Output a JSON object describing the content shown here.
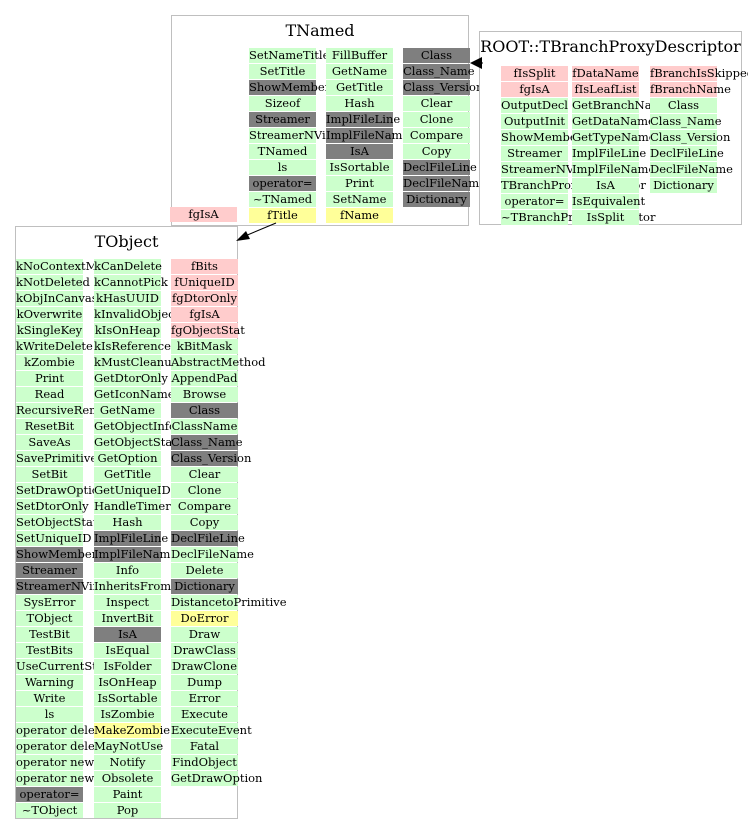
{
  "colors": {
    "green": "#ccffcc",
    "red": "#ffcccc",
    "gray": "#7f7f7f",
    "yellow": "#ffff99",
    "border": "#bfbfbf"
  },
  "boxes": [
    {
      "id": "tnamed",
      "title": "TNamed",
      "columns": [
        [
          {
            "t": "SetNameTitle",
            "c": "green"
          },
          {
            "t": "SetTitle",
            "c": "green"
          },
          {
            "t": "ShowMembers",
            "c": "gray"
          },
          {
            "t": "Sizeof",
            "c": "green"
          },
          {
            "t": "Streamer",
            "c": "gray"
          },
          {
            "t": "StreamerNVirtual",
            "c": "green"
          },
          {
            "t": "TNamed",
            "c": "green"
          },
          {
            "t": "ls",
            "c": "green"
          },
          {
            "t": "operator=",
            "c": "gray"
          },
          {
            "t": "~TNamed",
            "c": "green"
          },
          {
            "t": "fTitle",
            "c": "yellow"
          }
        ],
        [
          {
            "t": "FillBuffer",
            "c": "green"
          },
          {
            "t": "GetName",
            "c": "green"
          },
          {
            "t": "GetTitle",
            "c": "green"
          },
          {
            "t": "Hash",
            "c": "green"
          },
          {
            "t": "ImplFileLine",
            "c": "gray"
          },
          {
            "t": "ImplFileName",
            "c": "gray"
          },
          {
            "t": "IsA",
            "c": "gray"
          },
          {
            "t": "IsSortable",
            "c": "green"
          },
          {
            "t": "Print",
            "c": "green"
          },
          {
            "t": "SetName",
            "c": "green"
          },
          {
            "t": "fName",
            "c": "yellow"
          }
        ],
        [
          {
            "t": "Class",
            "c": "gray"
          },
          {
            "t": "Class_Name",
            "c": "gray"
          },
          {
            "t": "Class_Version",
            "c": "gray"
          },
          {
            "t": "Clear",
            "c": "green"
          },
          {
            "t": "Clone",
            "c": "green"
          },
          {
            "t": "Compare",
            "c": "green"
          },
          {
            "t": "Copy",
            "c": "green"
          },
          {
            "t": "DeclFileLine",
            "c": "gray"
          },
          {
            "t": "DeclFileName",
            "c": "gray"
          },
          {
            "t": "Dictionary",
            "c": "gray"
          }
        ]
      ]
    },
    {
      "id": "tbranchproxydescriptor",
      "title": "ROOT::TBranchProxyDescriptor",
      "columns": [
        [
          {
            "t": "fIsSplit",
            "c": "red"
          },
          {
            "t": "fgIsA",
            "c": "red"
          },
          {
            "t": "OutputDecl",
            "c": "green"
          },
          {
            "t": "OutputInit",
            "c": "green"
          },
          {
            "t": "ShowMembers",
            "c": "green"
          },
          {
            "t": "Streamer",
            "c": "green"
          },
          {
            "t": "StreamerNVirtual",
            "c": "green"
          },
          {
            "t": "TBranchProxyDescriptor",
            "c": "green"
          },
          {
            "t": "operator=",
            "c": "green"
          },
          {
            "t": "~TBranchProxyDescriptor",
            "c": "green"
          }
        ],
        [
          {
            "t": "fDataName",
            "c": "red"
          },
          {
            "t": "fIsLeafList",
            "c": "red"
          },
          {
            "t": "GetBranchName",
            "c": "green"
          },
          {
            "t": "GetDataName",
            "c": "green"
          },
          {
            "t": "GetTypeName",
            "c": "green"
          },
          {
            "t": "ImplFileLine",
            "c": "green"
          },
          {
            "t": "ImplFileName",
            "c": "green"
          },
          {
            "t": "IsA",
            "c": "green"
          },
          {
            "t": "IsEquivalent",
            "c": "green"
          },
          {
            "t": "IsSplit",
            "c": "green"
          }
        ],
        [
          {
            "t": "fBranchIsSkipped",
            "c": "red"
          },
          {
            "t": "fBranchName",
            "c": "red"
          },
          {
            "t": "Class",
            "c": "green"
          },
          {
            "t": "Class_Name",
            "c": "green"
          },
          {
            "t": "Class_Version",
            "c": "green"
          },
          {
            "t": "DeclFileLine",
            "c": "green"
          },
          {
            "t": "DeclFileName",
            "c": "green"
          },
          {
            "t": "Dictionary",
            "c": "green"
          }
        ]
      ]
    },
    {
      "id": "tobject",
      "title": "TObject",
      "columns": [
        [
          {
            "t": "kNoContextMenu",
            "c": "green"
          },
          {
            "t": "kNotDeleted",
            "c": "green"
          },
          {
            "t": "kObjInCanvas",
            "c": "green"
          },
          {
            "t": "kOverwrite",
            "c": "green"
          },
          {
            "t": "kSingleKey",
            "c": "green"
          },
          {
            "t": "kWriteDelete",
            "c": "green"
          },
          {
            "t": "kZombie",
            "c": "green"
          },
          {
            "t": "Print",
            "c": "green"
          },
          {
            "t": "Read",
            "c": "green"
          },
          {
            "t": "RecursiveRemove",
            "c": "green"
          },
          {
            "t": "ResetBit",
            "c": "green"
          },
          {
            "t": "SaveAs",
            "c": "green"
          },
          {
            "t": "SavePrimitive",
            "c": "green"
          },
          {
            "t": "SetBit",
            "c": "green"
          },
          {
            "t": "SetDrawOption",
            "c": "green"
          },
          {
            "t": "SetDtorOnly",
            "c": "green"
          },
          {
            "t": "SetObjectStat",
            "c": "green"
          },
          {
            "t": "SetUniqueID",
            "c": "green"
          },
          {
            "t": "ShowMembers",
            "c": "gray"
          },
          {
            "t": "Streamer",
            "c": "gray"
          },
          {
            "t": "StreamerNVirtual",
            "c": "gray"
          },
          {
            "t": "SysError",
            "c": "green"
          },
          {
            "t": "TObject",
            "c": "green"
          },
          {
            "t": "TestBit",
            "c": "green"
          },
          {
            "t": "TestBits",
            "c": "green"
          },
          {
            "t": "UseCurrentStyle",
            "c": "green"
          },
          {
            "t": "Warning",
            "c": "green"
          },
          {
            "t": "Write",
            "c": "green"
          },
          {
            "t": "ls",
            "c": "green"
          },
          {
            "t": "operator delete",
            "c": "green"
          },
          {
            "t": "operator delete[]",
            "c": "green"
          },
          {
            "t": "operator new",
            "c": "green"
          },
          {
            "t": "operator new[]",
            "c": "green"
          },
          {
            "t": "operator=",
            "c": "gray"
          },
          {
            "t": "~TObject",
            "c": "green"
          }
        ],
        [
          {
            "t": "kCanDelete",
            "c": "green"
          },
          {
            "t": "kCannotPick",
            "c": "green"
          },
          {
            "t": "kHasUUID",
            "c": "green"
          },
          {
            "t": "kInvalidObject",
            "c": "green"
          },
          {
            "t": "kIsOnHeap",
            "c": "green"
          },
          {
            "t": "kIsReferenced",
            "c": "green"
          },
          {
            "t": "kMustCleanup",
            "c": "green"
          },
          {
            "t": "GetDtorOnly",
            "c": "green"
          },
          {
            "t": "GetIconName",
            "c": "green"
          },
          {
            "t": "GetName",
            "c": "green"
          },
          {
            "t": "GetObjectInfo",
            "c": "green"
          },
          {
            "t": "GetObjectStat",
            "c": "green"
          },
          {
            "t": "GetOption",
            "c": "green"
          },
          {
            "t": "GetTitle",
            "c": "green"
          },
          {
            "t": "GetUniqueID",
            "c": "green"
          },
          {
            "t": "HandleTimer",
            "c": "green"
          },
          {
            "t": "Hash",
            "c": "green"
          },
          {
            "t": "ImplFileLine",
            "c": "gray"
          },
          {
            "t": "ImplFileName",
            "c": "gray"
          },
          {
            "t": "Info",
            "c": "green"
          },
          {
            "t": "InheritsFrom",
            "c": "green"
          },
          {
            "t": "Inspect",
            "c": "green"
          },
          {
            "t": "InvertBit",
            "c": "green"
          },
          {
            "t": "IsA",
            "c": "gray"
          },
          {
            "t": "IsEqual",
            "c": "green"
          },
          {
            "t": "IsFolder",
            "c": "green"
          },
          {
            "t": "IsOnHeap",
            "c": "green"
          },
          {
            "t": "IsSortable",
            "c": "green"
          },
          {
            "t": "IsZombie",
            "c": "green"
          },
          {
            "t": "MakeZombie",
            "c": "yellow"
          },
          {
            "t": "MayNotUse",
            "c": "green"
          },
          {
            "t": "Notify",
            "c": "green"
          },
          {
            "t": "Obsolete",
            "c": "green"
          },
          {
            "t": "Paint",
            "c": "green"
          },
          {
            "t": "Pop",
            "c": "green"
          }
        ],
        [
          {
            "t": "fBits",
            "c": "red"
          },
          {
            "t": "fUniqueID",
            "c": "red"
          },
          {
            "t": "fgDtorOnly",
            "c": "red"
          },
          {
            "t": "fgIsA",
            "c": "red"
          },
          {
            "t": "fgObjectStat",
            "c": "red"
          },
          {
            "t": "kBitMask",
            "c": "green"
          },
          {
            "t": "AbstractMethod",
            "c": "green"
          },
          {
            "t": "AppendPad",
            "c": "green"
          },
          {
            "t": "Browse",
            "c": "green"
          },
          {
            "t": "Class",
            "c": "gray"
          },
          {
            "t": "ClassName",
            "c": "green"
          },
          {
            "t": "Class_Name",
            "c": "gray"
          },
          {
            "t": "Class_Version",
            "c": "gray"
          },
          {
            "t": "Clear",
            "c": "green"
          },
          {
            "t": "Clone",
            "c": "green"
          },
          {
            "t": "Compare",
            "c": "green"
          },
          {
            "t": "Copy",
            "c": "green"
          },
          {
            "t": "DeclFileLine",
            "c": "gray"
          },
          {
            "t": "DeclFileName",
            "c": "green"
          },
          {
            "t": "Delete",
            "c": "green"
          },
          {
            "t": "Dictionary",
            "c": "gray"
          },
          {
            "t": "DistancetoPrimitive",
            "c": "green"
          },
          {
            "t": "DoError",
            "c": "yellow"
          },
          {
            "t": "Draw",
            "c": "green"
          },
          {
            "t": "DrawClass",
            "c": "green"
          },
          {
            "t": "DrawClone",
            "c": "green"
          },
          {
            "t": "Dump",
            "c": "green"
          },
          {
            "t": "Error",
            "c": "green"
          },
          {
            "t": "Execute",
            "c": "green"
          },
          {
            "t": "ExecuteEvent",
            "c": "green"
          },
          {
            "t": "Fatal",
            "c": "green"
          },
          {
            "t": "FindObject",
            "c": "green"
          },
          {
            "t": "GetDrawOption",
            "c": "green"
          }
        ]
      ]
    }
  ],
  "floating_labels": [
    {
      "id": "tnamed-fgisa",
      "t": "fgIsA",
      "c": "red"
    }
  ],
  "edges": [
    {
      "from": "tbranchproxydescriptor",
      "to": "tnamed"
    },
    {
      "from": "tnamed",
      "to": "tobject"
    }
  ]
}
